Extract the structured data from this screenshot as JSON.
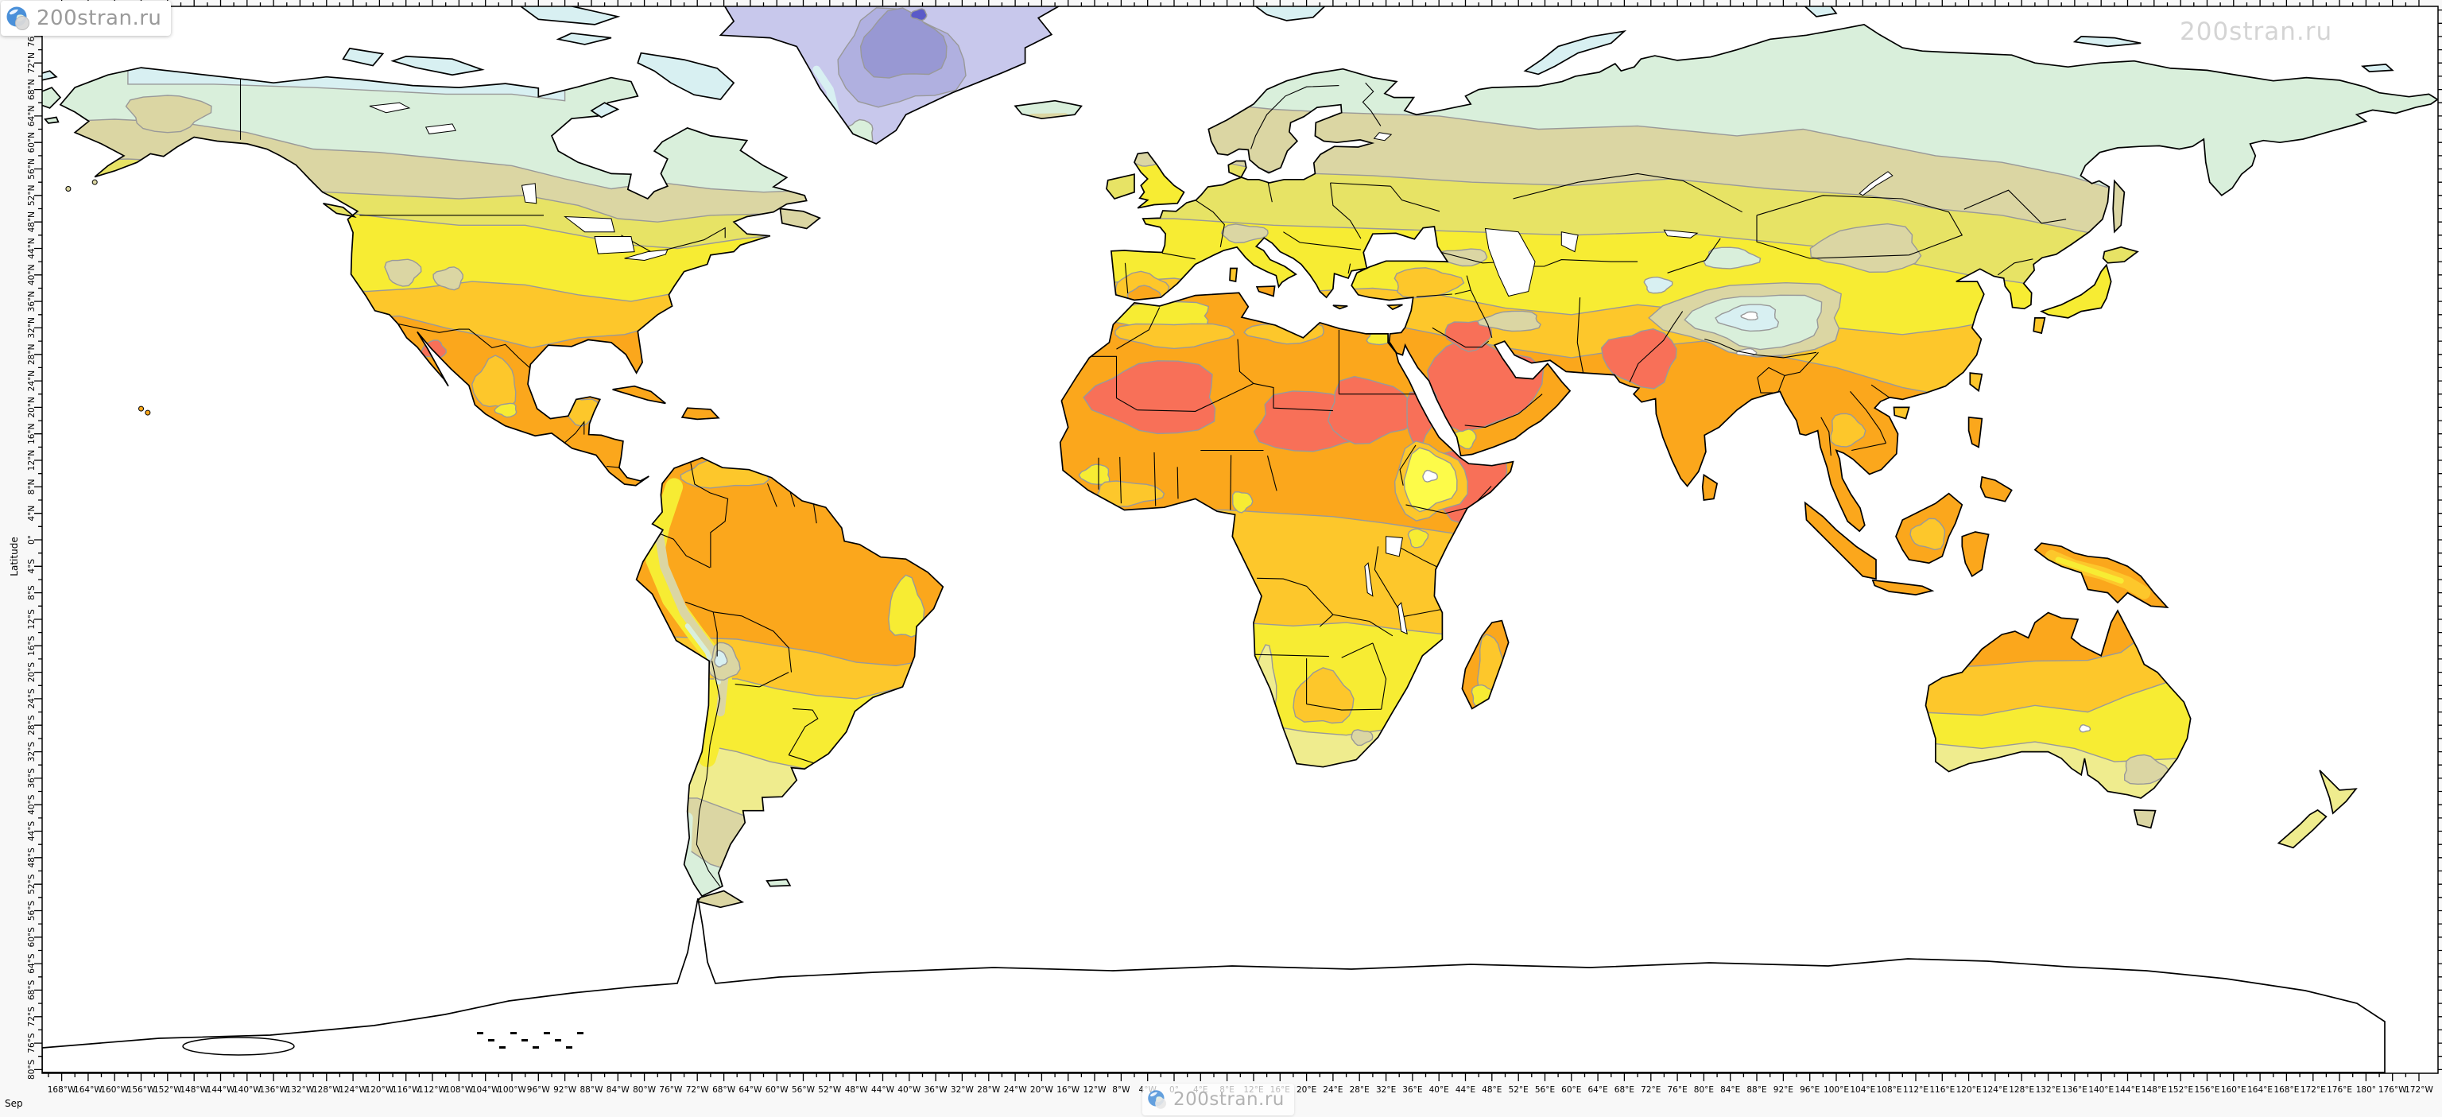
{
  "branding": {
    "logo_top_left": "200stran.ru",
    "watermark_top_right": "200stran.ru",
    "logo_bottom_center": "200stran.ru",
    "logo_icon": "globe-icon"
  },
  "map": {
    "month_label": "Sep",
    "axes": {
      "y_title": "Latitude",
      "lat_tick_labels": [
        "76°N",
        "72°N",
        "68°N",
        "64°N",
        "60°N",
        "56°N",
        "52°N",
        "48°N",
        "44°N",
        "40°N",
        "36°N",
        "32°N",
        "28°N",
        "24°N",
        "20°N",
        "16°N",
        "12°N",
        "8°N",
        "4°N",
        "0°",
        "4°S",
        "8°S",
        "12°S",
        "16°S",
        "20°S",
        "24°S",
        "28°S",
        "32°S",
        "36°S",
        "40°S",
        "44°S",
        "48°S",
        "52°S",
        "56°S",
        "60°S",
        "64°S",
        "68°S",
        "72°S",
        "76°S",
        "80°S"
      ],
      "lon_tick_labels": [
        "168°W",
        "164°W",
        "160°W",
        "156°W",
        "152°W",
        "148°W",
        "144°W",
        "140°W",
        "136°W",
        "132°W",
        "128°W",
        "124°W",
        "120°W",
        "116°W",
        "112°W",
        "108°W",
        "104°W",
        "100°W",
        "96°W",
        "92°W",
        "88°W",
        "84°W",
        "80°W",
        "76°W",
        "72°W",
        "68°W",
        "64°W",
        "60°W",
        "56°W",
        "52°W",
        "48°W",
        "44°W",
        "40°W",
        "36°W",
        "32°W",
        "28°W",
        "24°W",
        "20°W",
        "16°W",
        "12°W",
        "8°W",
        "4°W",
        "0°",
        "4°E",
        "8°E",
        "12°E",
        "16°E",
        "20°E",
        "24°E",
        "28°E",
        "32°E",
        "36°E",
        "40°E",
        "44°E",
        "48°E",
        "52°E",
        "56°E",
        "60°E",
        "64°E",
        "68°E",
        "72°E",
        "76°E",
        "80°E",
        "84°E",
        "88°E",
        "92°E",
        "96°E",
        "100°E",
        "104°E",
        "108°E",
        "112°E",
        "116°E",
        "120°E",
        "124°E",
        "128°E",
        "132°E",
        "136°E",
        "140°E",
        "144°E",
        "148°E",
        "152°E",
        "156°E",
        "160°E",
        "164°E",
        "168°E",
        "172°E",
        "176°E",
        "180°",
        "176°W",
        "172°W"
      ]
    },
    "palette": {
      "ocean": "#ffffff",
      "outside": "#f8f8f8",
      "coast": "#000000",
      "border": "#000000",
      "contour": "#999999",
      "red": "#f87058",
      "orange": "#fba71c",
      "amber": "#fdc72b",
      "yellow": "#f7ec33",
      "brightYellow": "#fdfb49",
      "paleYellow": "#efec8e",
      "olive": "#e7e365",
      "khaki": "#dbd6a3",
      "mint": "#d9efdb",
      "paleCyan": "#d8f0f2",
      "periwinkle": "#c8c8ec",
      "lavender": "#b0b0e0",
      "purple": "#9898d3",
      "deepPurple": "#5a5ac8",
      "white": "#ffffff"
    }
  }
}
